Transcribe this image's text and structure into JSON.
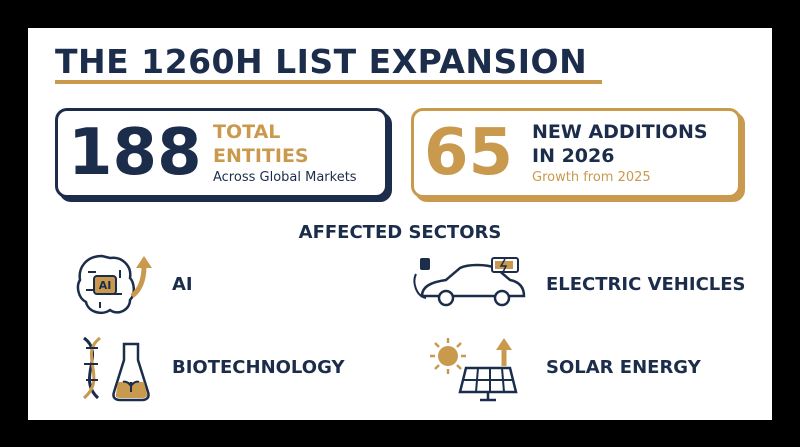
{
  "header": {
    "title": "THE 1260H LIST EXPANSION"
  },
  "stats": [
    {
      "number": 188,
      "label": [
        "TOTAL",
        "ENTITIES"
      ],
      "sublabel": "Across Global Markets"
    },
    {
      "number": 65,
      "label": [
        "NEW ADDITIONS",
        "IN 2026"
      ],
      "sublabel": "Growth from 2025"
    }
  ],
  "sectors_heading": "AFFECTED SECTORS",
  "sectors": [
    {
      "label": "AI",
      "icon_text": "AI"
    },
    {
      "label": "ELECTRIC VEHICLES"
    },
    {
      "label": "BIOTECHNOLOGY"
    },
    {
      "label": "SOLAR ENERGY"
    }
  ]
}
